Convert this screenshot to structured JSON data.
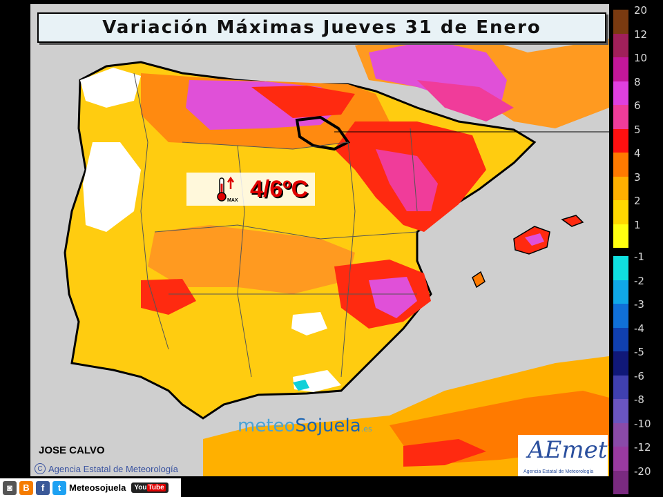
{
  "title": "Variación Máximas Jueves 31 de Enero",
  "annotation": {
    "value_text": "4/6ºC",
    "icon_label": "MAX"
  },
  "author": "JOSE CALVO",
  "credit": "Agencia Estatal de Meteorología",
  "watermark": {
    "part1": "meteo",
    "part2": "Sojuela",
    "suffix": ".es"
  },
  "logo": {
    "name": "AEmet",
    "subtitle": "Agencia Estatal de Meteorología"
  },
  "legend": [
    {
      "label": "20",
      "color": "#7a3a10"
    },
    {
      "label": "12",
      "color": "#a0205a"
    },
    {
      "label": "10",
      "color": "#c4179a"
    },
    {
      "label": "8",
      "color": "#e040e0"
    },
    {
      "label": "6",
      "color": "#f03c9a"
    },
    {
      "label": "5",
      "color": "#ff1010"
    },
    {
      "label": "4",
      "color": "#ff7a00"
    },
    {
      "label": "3",
      "color": "#ffb000"
    },
    {
      "label": "2",
      "color": "#ffd800"
    },
    {
      "label": "1",
      "color": "#ffff10"
    },
    {
      "label": "-1",
      "color": "#10e0e0"
    },
    {
      "label": "-2",
      "color": "#10a8e8"
    },
    {
      "label": "-3",
      "color": "#1070d8"
    },
    {
      "label": "-4",
      "color": "#1040b0"
    },
    {
      "label": "-5",
      "color": "#101878"
    },
    {
      "label": "-6",
      "color": "#4040b0"
    },
    {
      "label": "-8",
      "color": "#6a55c0"
    },
    {
      "label": "-10",
      "color": "#8a4aa8"
    },
    {
      "label": "-12",
      "color": "#9a3aa0"
    },
    {
      "label": "-20",
      "color": "#7a2a80"
    }
  ],
  "social": {
    "label": "Meteosojuela",
    "youtube": "You",
    "youtube_tube": "Tube"
  },
  "colors": {
    "sea": "#cfcfcf",
    "title_bg": "#e8f2f6",
    "value_red": "#e00000"
  }
}
